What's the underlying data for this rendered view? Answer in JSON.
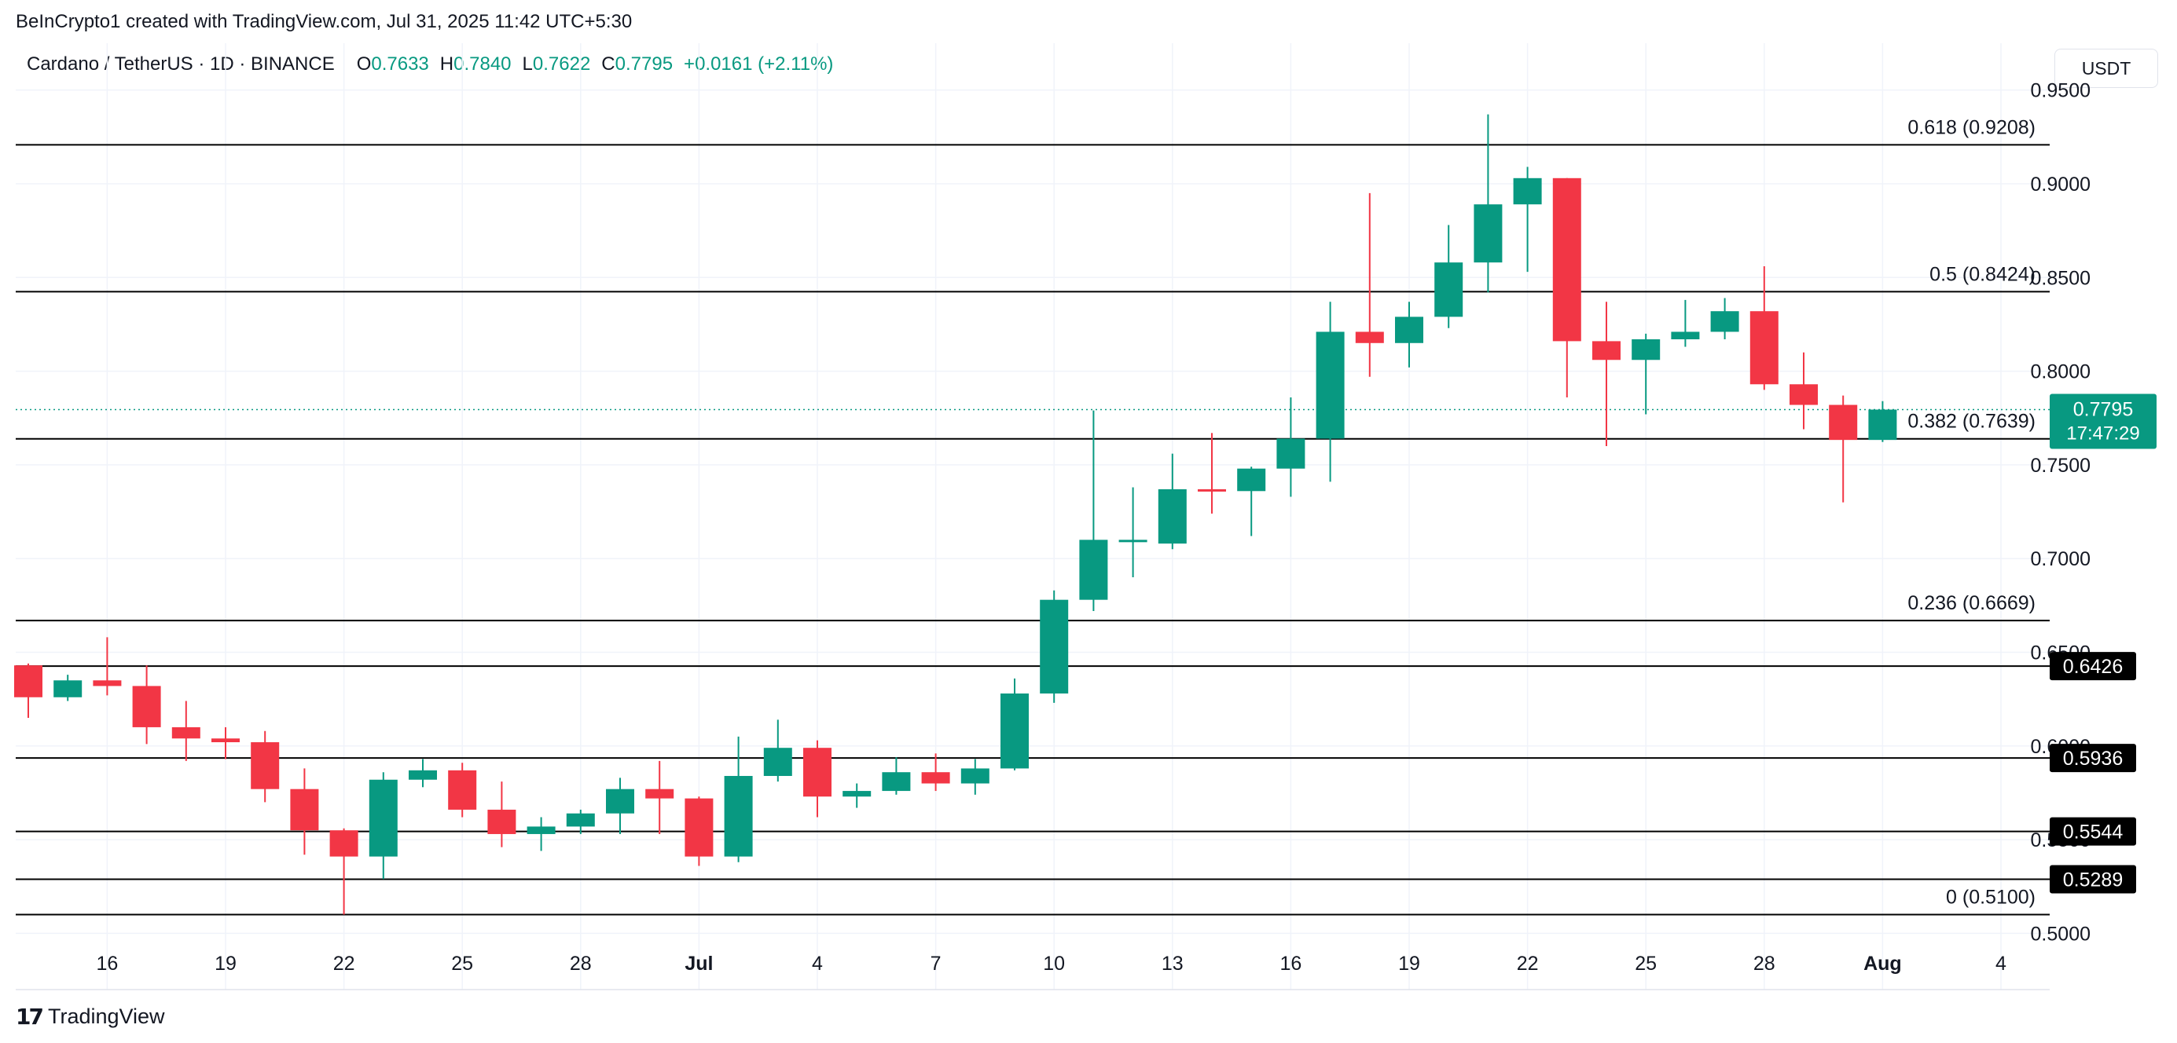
{
  "header": {
    "attribution": "BeInCrypto1 created with TradingView.com, Jul 31, 2025 11:42 UTC+5:30",
    "symbol": "Cardano / TetherUS · 1D · BINANCE",
    "open_label": "O",
    "open": "0.7633",
    "high_label": "H",
    "high": "0.7840",
    "low_label": "L",
    "low": "0.7622",
    "close_label": "C",
    "close": "0.7795",
    "change": "+0.0161 (+2.11%)"
  },
  "currency": "USDT",
  "footer": {
    "brand": "TradingView",
    "logo_mark": "17"
  },
  "colors": {
    "up": "#089981",
    "down": "#f23645",
    "line": "#000000",
    "grid": "#f0f3fa",
    "text": "#131722"
  },
  "chart_data": {
    "type": "candlestick",
    "ylim": [
      0.47,
      0.975
    ],
    "y_ticks": [
      "0.5000",
      "0.5500",
      "0.6000",
      "0.6500",
      "0.7000",
      "0.7500",
      "0.8000",
      "0.8500",
      "0.9000",
      "0.9500"
    ],
    "x_ticks": [
      {
        "index": 2,
        "label": "16"
      },
      {
        "index": 5,
        "label": "19"
      },
      {
        "index": 8,
        "label": "22"
      },
      {
        "index": 11,
        "label": "25"
      },
      {
        "index": 14,
        "label": "28"
      },
      {
        "index": 17,
        "label": "Jul"
      },
      {
        "index": 20,
        "label": "4"
      },
      {
        "index": 23,
        "label": "7"
      },
      {
        "index": 26,
        "label": "10"
      },
      {
        "index": 29,
        "label": "13"
      },
      {
        "index": 32,
        "label": "16"
      },
      {
        "index": 35,
        "label": "19"
      },
      {
        "index": 38,
        "label": "22"
      },
      {
        "index": 41,
        "label": "25"
      },
      {
        "index": 44,
        "label": "28"
      },
      {
        "index": 47,
        "label": "Aug"
      },
      {
        "index": 50,
        "label": "4"
      }
    ],
    "candles": [
      {
        "date": "Jun 14",
        "o": 0.643,
        "h": 0.644,
        "l": 0.615,
        "c": 0.626
      },
      {
        "date": "Jun 15",
        "o": 0.626,
        "h": 0.638,
        "l": 0.624,
        "c": 0.635
      },
      {
        "date": "Jun 16",
        "o": 0.635,
        "h": 0.658,
        "l": 0.627,
        "c": 0.632
      },
      {
        "date": "Jun 17",
        "o": 0.632,
        "h": 0.643,
        "l": 0.601,
        "c": 0.61
      },
      {
        "date": "Jun 18",
        "o": 0.61,
        "h": 0.624,
        "l": 0.592,
        "c": 0.604
      },
      {
        "date": "Jun 19",
        "o": 0.604,
        "h": 0.61,
        "l": 0.593,
        "c": 0.602
      },
      {
        "date": "Jun 20",
        "o": 0.602,
        "h": 0.608,
        "l": 0.57,
        "c": 0.577
      },
      {
        "date": "Jun 21",
        "o": 0.577,
        "h": 0.588,
        "l": 0.542,
        "c": 0.555
      },
      {
        "date": "Jun 22",
        "o": 0.555,
        "h": 0.556,
        "l": 0.51,
        "c": 0.541
      },
      {
        "date": "Jun 23",
        "o": 0.541,
        "h": 0.586,
        "l": 0.529,
        "c": 0.582
      },
      {
        "date": "Jun 24",
        "o": 0.582,
        "h": 0.593,
        "l": 0.578,
        "c": 0.587
      },
      {
        "date": "Jun 25",
        "o": 0.587,
        "h": 0.591,
        "l": 0.562,
        "c": 0.566
      },
      {
        "date": "Jun 26",
        "o": 0.566,
        "h": 0.581,
        "l": 0.546,
        "c": 0.553
      },
      {
        "date": "Jun 27",
        "o": 0.553,
        "h": 0.562,
        "l": 0.544,
        "c": 0.557
      },
      {
        "date": "Jun 28",
        "o": 0.557,
        "h": 0.566,
        "l": 0.553,
        "c": 0.564
      },
      {
        "date": "Jun 29",
        "o": 0.564,
        "h": 0.583,
        "l": 0.553,
        "c": 0.577
      },
      {
        "date": "Jun 30",
        "o": 0.577,
        "h": 0.592,
        "l": 0.553,
        "c": 0.572
      },
      {
        "date": "Jul 1",
        "o": 0.572,
        "h": 0.573,
        "l": 0.536,
        "c": 0.541
      },
      {
        "date": "Jul 2",
        "o": 0.541,
        "h": 0.605,
        "l": 0.538,
        "c": 0.584
      },
      {
        "date": "Jul 3",
        "o": 0.584,
        "h": 0.614,
        "l": 0.581,
        "c": 0.599
      },
      {
        "date": "Jul 4",
        "o": 0.599,
        "h": 0.603,
        "l": 0.562,
        "c": 0.573
      },
      {
        "date": "Jul 5",
        "o": 0.573,
        "h": 0.58,
        "l": 0.567,
        "c": 0.576
      },
      {
        "date": "Jul 6",
        "o": 0.576,
        "h": 0.594,
        "l": 0.574,
        "c": 0.586
      },
      {
        "date": "Jul 7",
        "o": 0.586,
        "h": 0.596,
        "l": 0.576,
        "c": 0.58
      },
      {
        "date": "Jul 8",
        "o": 0.58,
        "h": 0.593,
        "l": 0.574,
        "c": 0.588
      },
      {
        "date": "Jul 9",
        "o": 0.588,
        "h": 0.636,
        "l": 0.587,
        "c": 0.628
      },
      {
        "date": "Jul 10",
        "o": 0.628,
        "h": 0.683,
        "l": 0.623,
        "c": 0.678
      },
      {
        "date": "Jul 11",
        "o": 0.678,
        "h": 0.779,
        "l": 0.672,
        "c": 0.71
      },
      {
        "date": "Jul 12",
        "o": 0.71,
        "h": 0.738,
        "l": 0.69,
        "c": 0.71
      },
      {
        "date": "Jul 13",
        "o": 0.708,
        "h": 0.756,
        "l": 0.705,
        "c": 0.737
      },
      {
        "date": "Jul 14",
        "o": 0.737,
        "h": 0.767,
        "l": 0.724,
        "c": 0.736
      },
      {
        "date": "Jul 15",
        "o": 0.736,
        "h": 0.749,
        "l": 0.712,
        "c": 0.748
      },
      {
        "date": "Jul 16",
        "o": 0.748,
        "h": 0.786,
        "l": 0.733,
        "c": 0.764
      },
      {
        "date": "Jul 17",
        "o": 0.764,
        "h": 0.837,
        "l": 0.741,
        "c": 0.821
      },
      {
        "date": "Jul 18",
        "o": 0.821,
        "h": 0.895,
        "l": 0.797,
        "c": 0.815
      },
      {
        "date": "Jul 19",
        "o": 0.815,
        "h": 0.837,
        "l": 0.802,
        "c": 0.829
      },
      {
        "date": "Jul 20",
        "o": 0.829,
        "h": 0.878,
        "l": 0.823,
        "c": 0.858
      },
      {
        "date": "Jul 21",
        "o": 0.858,
        "h": 0.937,
        "l": 0.842,
        "c": 0.889
      },
      {
        "date": "Jul 22",
        "o": 0.889,
        "h": 0.909,
        "l": 0.853,
        "c": 0.903
      },
      {
        "date": "Jul 23",
        "o": 0.903,
        "h": 0.903,
        "l": 0.786,
        "c": 0.816
      },
      {
        "date": "Jul 24",
        "o": 0.816,
        "h": 0.837,
        "l": 0.76,
        "c": 0.806
      },
      {
        "date": "Jul 25",
        "o": 0.806,
        "h": 0.82,
        "l": 0.777,
        "c": 0.817
      },
      {
        "date": "Jul 26",
        "o": 0.817,
        "h": 0.838,
        "l": 0.813,
        "c": 0.821
      },
      {
        "date": "Jul 27",
        "o": 0.821,
        "h": 0.839,
        "l": 0.817,
        "c": 0.832
      },
      {
        "date": "Jul 28",
        "o": 0.832,
        "h": 0.856,
        "l": 0.79,
        "c": 0.793
      },
      {
        "date": "Jul 29",
        "o": 0.793,
        "h": 0.81,
        "l": 0.769,
        "c": 0.782
      },
      {
        "date": "Jul 30",
        "o": 0.782,
        "h": 0.787,
        "l": 0.73,
        "c": 0.7633
      },
      {
        "date": "Jul 31",
        "o": 0.7633,
        "h": 0.784,
        "l": 0.7622,
        "c": 0.7795
      }
    ],
    "fib_levels": [
      {
        "value": 0.9208,
        "label": "0.618 (0.9208)"
      },
      {
        "value": 0.8424,
        "label": "0.5 (0.8424)"
      },
      {
        "value": 0.7639,
        "label": "0.382 (0.7639)"
      },
      {
        "value": 0.6669,
        "label": "0.236 (0.6669)"
      },
      {
        "value": 0.51,
        "label": "0 (0.5100)"
      }
    ],
    "support_levels": [
      {
        "value": 0.6426,
        "label": "0.6426"
      },
      {
        "value": 0.5936,
        "label": "0.5936"
      },
      {
        "value": 0.5544,
        "label": "0.5544"
      },
      {
        "value": 0.5289,
        "label": "0.5289"
      }
    ],
    "current_price": {
      "value": 0.7795,
      "label": "0.7795",
      "countdown": "17:47:29"
    }
  }
}
